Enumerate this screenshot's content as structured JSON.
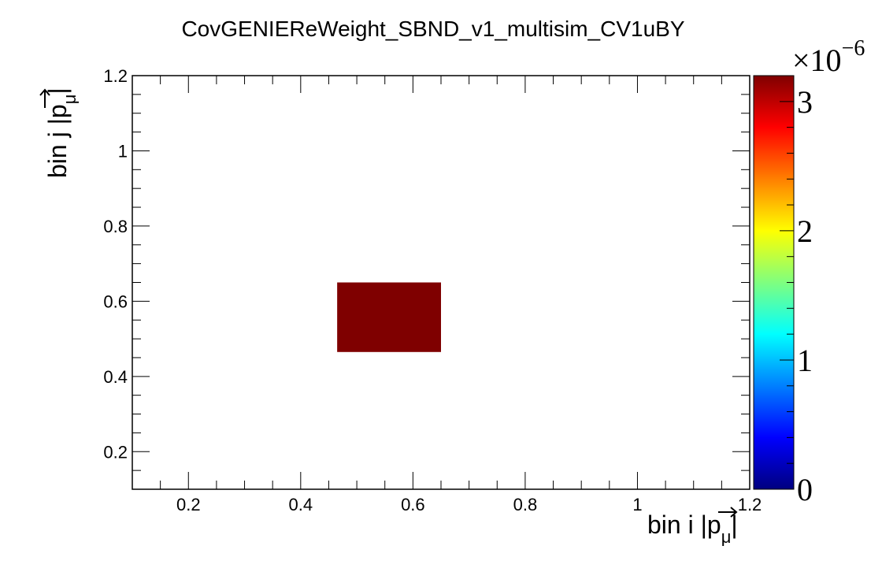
{
  "chart_data": {
    "type": "heatmap",
    "title": "CovGENIEReWeight_SBND_v1_multisim_CV1uBY",
    "xlabel": {
      "prefix": "bin i |",
      "symbol": "p",
      "subscript": "μ",
      "suffix": "|"
    },
    "ylabel": {
      "prefix": "bin j |",
      "symbol": "p",
      "subscript": "μ",
      "suffix": "|"
    },
    "xlim": [
      0.1,
      1.2
    ],
    "ylim": [
      0.1,
      1.2
    ],
    "x_ticks": [
      0.2,
      0.4,
      0.6,
      0.8,
      1,
      1.2
    ],
    "x_tick_labels": [
      "0.2",
      "0.4",
      "0.6",
      "0.8",
      "1",
      "1.2"
    ],
    "y_ticks": [
      0.2,
      0.4,
      0.6,
      0.8,
      1,
      1.2
    ],
    "y_tick_labels": [
      "0.2",
      "0.4",
      "0.6",
      "0.8",
      "1",
      "1.2"
    ],
    "cells": [
      {
        "x0": 0.465,
        "x1": 0.65,
        "y0": 0.465,
        "y1": 0.65,
        "value": 3.2e-06
      }
    ],
    "colorbar": {
      "range": [
        0,
        3.2
      ],
      "ticks": [
        0,
        1,
        2,
        3
      ],
      "tick_labels": [
        "0",
        "1",
        "2",
        "3"
      ],
      "exponent_label": "×10",
      "exponent": "−6",
      "palette": [
        "#00007f",
        "#0000ff",
        "#007fff",
        "#00ffff",
        "#7fff7f",
        "#ffff00",
        "#ff7f00",
        "#ff0000",
        "#7f0000"
      ]
    },
    "grid": false
  }
}
